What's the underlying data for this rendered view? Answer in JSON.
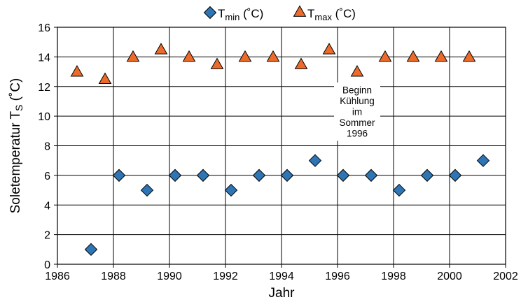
{
  "chart_data": {
    "type": "scatter",
    "legend": {
      "position": "top-center",
      "entries": [
        {
          "base": "T",
          "sub": "min",
          "suffix": " (˚C)",
          "marker": "diamond",
          "color": "#2e75b6"
        },
        {
          "base": "T",
          "sub": "max",
          "suffix": " (˚C)",
          "marker": "triangle",
          "color": "#ed6b2a"
        }
      ]
    },
    "xlabel": "Jahr",
    "ylabel": {
      "base": "Soletemperatur T",
      "sub": "S",
      "suffix": " (˚C)"
    },
    "xlim": [
      1986,
      2002
    ],
    "ylim": [
      0,
      16
    ],
    "xticks": [
      1986,
      1988,
      1990,
      1992,
      1994,
      1996,
      1998,
      2000,
      2002
    ],
    "yticks": [
      0,
      2,
      4,
      6,
      8,
      10,
      12,
      14,
      16
    ],
    "grid": true,
    "series": [
      {
        "name": "Tmin",
        "marker": "diamond",
        "color": "#2e75b6",
        "x": [
          1987.2,
          1988.2,
          1989.2,
          1990.2,
          1991.2,
          1992.2,
          1993.2,
          1994.2,
          1995.2,
          1996.2,
          1997.2,
          1998.2,
          1999.2,
          2000.2,
          2001.2
        ],
        "y": [
          1,
          6,
          5,
          6,
          6,
          5,
          6,
          6,
          7,
          6,
          6,
          5,
          6,
          6,
          7
        ]
      },
      {
        "name": "Tmax",
        "marker": "triangle",
        "color": "#ed6b2a",
        "x": [
          1986.7,
          1987.7,
          1988.7,
          1989.7,
          1990.7,
          1991.7,
          1992.7,
          1993.7,
          1994.7,
          1995.7,
          1996.7,
          1997.7,
          1998.7,
          1999.7,
          2000.7
        ],
        "y": [
          13,
          12.5,
          14,
          14.5,
          14,
          13.5,
          14,
          14,
          13.5,
          14.5,
          13,
          14,
          14,
          14,
          14
        ]
      }
    ],
    "annotation": {
      "lines": [
        "Beginn",
        "Kühlung",
        "im",
        "Sommer",
        "1996"
      ],
      "x": 1996.7,
      "y": 10.3
    }
  }
}
